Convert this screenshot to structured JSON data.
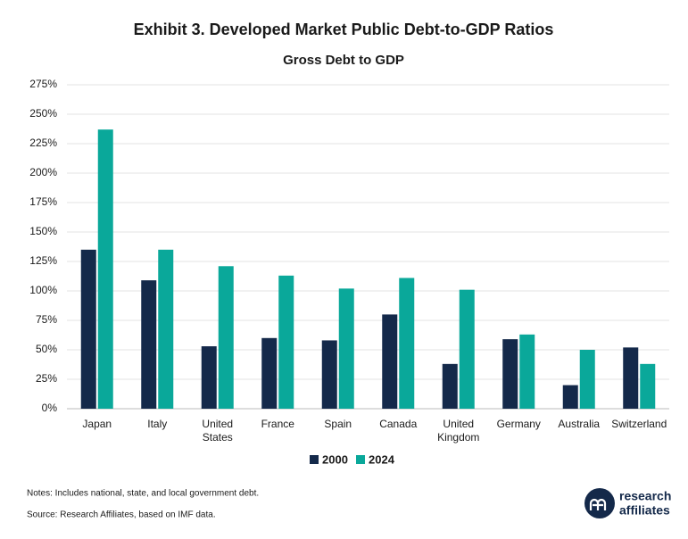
{
  "chart_data": {
    "type": "bar",
    "title": "Exhibit 3. Developed Market Public Debt-to-GDP Ratios",
    "subtitle": "Gross Debt to GDP",
    "categories": [
      "Japan",
      "Italy",
      "United States",
      "France",
      "Spain",
      "Canada",
      "United Kingdom",
      "Germany",
      "Australia",
      "Switzerland"
    ],
    "series": [
      {
        "name": "2000",
        "color": "#14294a",
        "values": [
          135,
          109,
          53,
          60,
          58,
          80,
          38,
          59,
          20,
          52
        ]
      },
      {
        "name": "2024",
        "color": "#0aa89a",
        "values": [
          237,
          135,
          121,
          113,
          102,
          111,
          101,
          63,
          50,
          38
        ]
      }
    ],
    "ylim": [
      0,
      275
    ],
    "yticks": [
      {
        "value": 0,
        "label": "0%"
      },
      {
        "value": 25,
        "label": "25%"
      },
      {
        "value": 50,
        "label": "50%"
      },
      {
        "value": 75,
        "label": "75%"
      },
      {
        "value": 100,
        "label": "100%"
      },
      {
        "value": 125,
        "label": "125%"
      },
      {
        "value": 150,
        "label": "150%"
      },
      {
        "value": 175,
        "label": "175%"
      },
      {
        "value": 200,
        "label": "200%"
      },
      {
        "value": 225,
        "label": "225%"
      },
      {
        "value": 250,
        "label": "250%"
      },
      {
        "value": 275,
        "label": "275%"
      }
    ],
    "grid": true,
    "notes": "Notes: Includes national, state, and local government debt.",
    "source": "Source: Research Affiliates, based on IMF data.",
    "logo": [
      "research",
      "affiliates"
    ]
  }
}
